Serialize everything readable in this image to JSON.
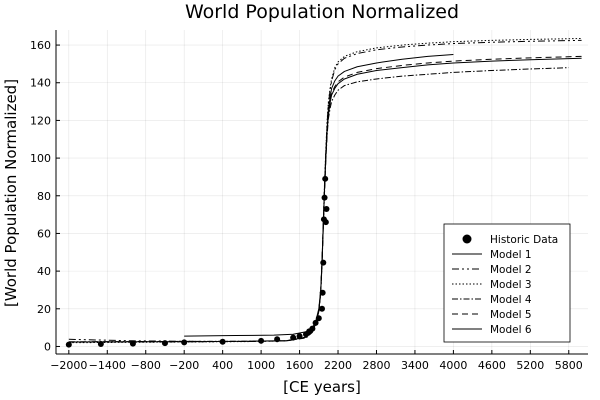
{
  "chart_data": {
    "type": "scatter",
    "title": "World Population Normalized",
    "xlabel": "[CE years]",
    "ylabel": "[World Population Normalized]",
    "xlim": [
      -2200,
      6100
    ],
    "ylim": [
      -4,
      168
    ],
    "xticks": [
      -2000,
      -1400,
      -800,
      -200,
      400,
      1000,
      1600,
      2200,
      2800,
      3400,
      4000,
      4600,
      5200,
      5800
    ],
    "xtick_labels": [
      "−2000",
      "−1400",
      "−800",
      "−200",
      "400",
      "1000",
      "1600",
      "2200",
      "2800",
      "3400",
      "4000",
      "4600",
      "5200",
      "5800"
    ],
    "yticks": [
      0,
      20,
      40,
      60,
      80,
      100,
      120,
      140,
      160
    ],
    "ytick_labels": [
      "0",
      "20",
      "40",
      "60",
      "80",
      "100",
      "120",
      "140",
      "160"
    ],
    "grid": true,
    "legend_position": "bottom-right",
    "series": [
      {
        "name": "Historic Data",
        "kind": "points",
        "color": "#000000",
        "x": [
          -2000,
          -1500,
          -1000,
          -500,
          -200,
          400,
          1000,
          1250,
          1500,
          1600,
          1700,
          1750,
          1800,
          1850,
          1900,
          1950,
          1960,
          1970,
          1980,
          1990,
          2000,
          2010,
          2020
        ],
        "y": [
          1.0,
          1.3,
          1.5,
          1.8,
          2.2,
          2.5,
          3.0,
          3.8,
          4.7,
          5.5,
          6.5,
          8.0,
          9.5,
          12.5,
          15.0,
          20.0,
          28.5,
          44.5,
          67.5,
          79.0,
          89.0,
          66.0,
          73.0
        ]
      },
      {
        "name": "Model 1",
        "kind": "line",
        "dash": "",
        "color": "#000000",
        "x": [
          -200,
          600,
          1200,
          1500,
          1700,
          1800,
          1850,
          1900,
          1930,
          1950,
          1970,
          1990,
          2010,
          2030,
          2050,
          2080,
          2100,
          2150,
          2200,
          2300,
          2500,
          2800,
          3200,
          3600,
          4000
        ],
        "y": [
          5.5,
          5.8,
          6.0,
          6.5,
          7.8,
          10,
          13,
          20,
          30,
          45,
          65,
          85,
          102,
          116,
          126,
          133,
          137,
          141,
          143.5,
          146,
          148.5,
          150.5,
          152.5,
          154,
          155
        ]
      },
      {
        "name": "Model 2",
        "kind": "line",
        "dash": "7 3 2 3 2 3",
        "color": "#000000",
        "x": [
          -2000,
          -1000,
          0,
          800,
          1400,
          1700,
          1800,
          1850,
          1900,
          1930,
          1950,
          1970,
          1990,
          2010,
          2030,
          2050,
          2080,
          2100,
          2150,
          2200,
          2300,
          2500,
          2800,
          3200,
          3600,
          4000,
          4600,
          5200,
          6000
        ],
        "y": [
          3.8,
          3.0,
          2.7,
          2.6,
          3.0,
          5.0,
          8,
          12,
          19,
          29,
          44,
          65,
          86,
          104,
          119,
          129,
          137,
          141,
          147,
          150,
          153,
          155.5,
          157.5,
          159,
          160,
          160.8,
          161.5,
          162,
          162.5
        ]
      },
      {
        "name": "Model 3",
        "kind": "line",
        "dash": "1.5 2",
        "color": "#000000",
        "x": [
          -2000,
          -1000,
          0,
          800,
          1400,
          1700,
          1800,
          1850,
          1900,
          1930,
          1950,
          1970,
          1990,
          2010,
          2030,
          2050,
          2080,
          2100,
          2150,
          2200,
          2300,
          2500,
          2800,
          3200,
          3600,
          4000,
          4600,
          5200,
          6000
        ],
        "y": [
          2.0,
          2.2,
          2.4,
          2.6,
          3.0,
          5.0,
          8,
          12,
          19,
          29,
          44,
          66,
          87,
          105,
          120,
          130,
          138,
          142,
          148,
          151,
          154,
          156.5,
          158.5,
          160,
          161,
          161.8,
          162.5,
          163,
          163.5
        ]
      },
      {
        "name": "Model 4",
        "kind": "line",
        "dash": "6 2 1.5 2",
        "color": "#000000",
        "x": [
          -2000,
          -1000,
          0,
          800,
          1400,
          1700,
          1800,
          1850,
          1900,
          1930,
          1950,
          1970,
          1990,
          2010,
          2030,
          2050,
          2080,
          2100,
          2150,
          2200,
          2300,
          2500,
          2800,
          3200,
          3600,
          4000,
          4600,
          5200,
          5800
        ],
        "y": [
          2.5,
          2.6,
          2.7,
          2.8,
          3.0,
          4.5,
          7.5,
          11.5,
          18.5,
          28,
          43,
          63,
          82,
          99,
          112,
          121,
          127,
          130,
          133.5,
          136,
          138.5,
          140.5,
          142,
          143.5,
          144.5,
          145.5,
          146.5,
          147.3,
          148
        ]
      },
      {
        "name": "Model 5",
        "kind": "line",
        "dash": "6 4",
        "color": "#000000",
        "x": [
          -2000,
          -1000,
          0,
          800,
          1400,
          1700,
          1800,
          1850,
          1900,
          1930,
          1950,
          1970,
          1990,
          2010,
          2030,
          2050,
          2080,
          2100,
          2150,
          2200,
          2300,
          2500,
          2800,
          3200,
          3600,
          4000,
          4600,
          5200,
          6000
        ],
        "y": [
          2.3,
          2.4,
          2.5,
          2.7,
          3.0,
          4.8,
          7.8,
          12,
          19,
          29,
          44,
          64,
          84,
          101,
          115,
          124,
          131,
          134.5,
          138,
          140.5,
          143,
          145.5,
          147.5,
          149.2,
          150.5,
          151.5,
          152.5,
          153.2,
          154
        ]
      },
      {
        "name": "Model 6",
        "kind": "line",
        "dash": "",
        "color": "#000000",
        "x": [
          -2000,
          -1000,
          0,
          800,
          1400,
          1700,
          1800,
          1850,
          1900,
          1930,
          1950,
          1970,
          1990,
          2010,
          2030,
          2050,
          2080,
          2100,
          2150,
          2200,
          2300,
          2500,
          2800,
          3200,
          3600,
          4000,
          4600,
          5200,
          6000
        ],
        "y": [
          2.4,
          2.5,
          2.6,
          2.8,
          3.1,
          4.9,
          7.9,
          12,
          19,
          29,
          44,
          64,
          83.5,
          100.5,
          114,
          123,
          130,
          133.5,
          137,
          139.5,
          142,
          144.5,
          146.5,
          148,
          149.5,
          150.5,
          151.5,
          152.2,
          153
        ]
      }
    ]
  }
}
